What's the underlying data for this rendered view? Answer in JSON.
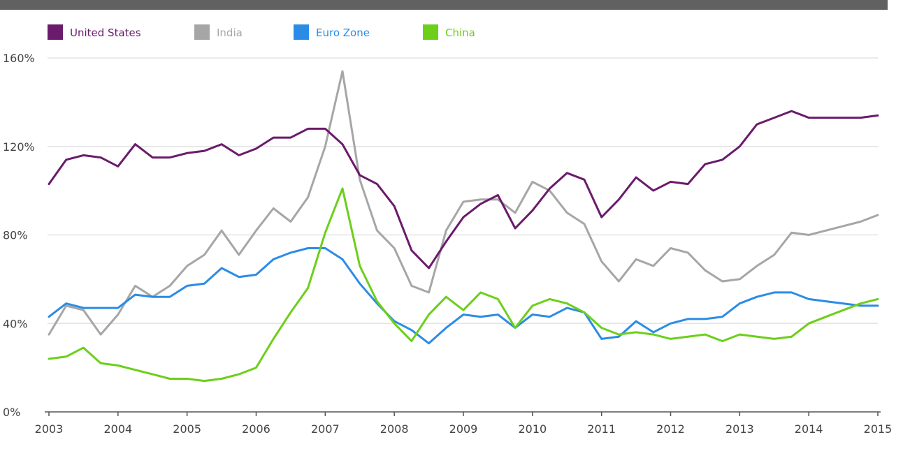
{
  "chart_data": {
    "type": "line",
    "title": "",
    "xlabel": "",
    "ylabel": "",
    "ylim": [
      0,
      160
    ],
    "xlim": [
      2003,
      2015
    ],
    "grid": true,
    "legend_position": "top-left",
    "y_ticks": [
      {
        "value": 0,
        "label": "0%"
      },
      {
        "value": 40,
        "label": "40%"
      },
      {
        "value": 80,
        "label": "80%"
      },
      {
        "value": 120,
        "label": "120%"
      },
      {
        "value": 160,
        "label": "160%"
      }
    ],
    "x_ticks": [
      {
        "value": 2003,
        "label": "2003"
      },
      {
        "value": 2004,
        "label": "2004"
      },
      {
        "value": 2005,
        "label": "2005"
      },
      {
        "value": 2006,
        "label": "2006"
      },
      {
        "value": 2007,
        "label": "2007"
      },
      {
        "value": 2008,
        "label": "2008"
      },
      {
        "value": 2009,
        "label": "2009"
      },
      {
        "value": 2010,
        "label": "2010"
      },
      {
        "value": 2011,
        "label": "2011"
      },
      {
        "value": 2012,
        "label": "2012"
      },
      {
        "value": 2013,
        "label": "2013"
      },
      {
        "value": 2014,
        "label": "2014"
      },
      {
        "value": 2015,
        "label": "2015"
      }
    ],
    "x": [
      2003.0,
      2003.25,
      2003.5,
      2003.75,
      2004.0,
      2004.25,
      2004.5,
      2004.75,
      2005.0,
      2005.25,
      2005.5,
      2005.75,
      2006.0,
      2006.25,
      2006.5,
      2006.75,
      2007.0,
      2007.25,
      2007.5,
      2007.75,
      2008.0,
      2008.25,
      2008.5,
      2008.75,
      2009.0,
      2009.25,
      2009.5,
      2009.75,
      2010.0,
      2010.25,
      2010.5,
      2010.75,
      2011.0,
      2011.25,
      2011.5,
      2011.75,
      2012.0,
      2012.25,
      2012.5,
      2012.75,
      2013.0,
      2013.25,
      2013.5,
      2013.75,
      2014.0,
      2014.25,
      2014.5,
      2014.75,
      2015.0
    ],
    "series": [
      {
        "name": "United States",
        "color": "#6a1b6b",
        "values": [
          103,
          114,
          116,
          115,
          111,
          121,
          115,
          115,
          117,
          118,
          121,
          116,
          119,
          124,
          124,
          128,
          128,
          121,
          107,
          103,
          93,
          73,
          65,
          77,
          88,
          94,
          98,
          83,
          91,
          101,
          108,
          105,
          88,
          96,
          106,
          100,
          104,
          103,
          112,
          114,
          120,
          130,
          133,
          136,
          133,
          133,
          133,
          133,
          134
        ]
      },
      {
        "name": "India",
        "color": "#a6a6a6",
        "values": [
          35,
          48,
          46,
          35,
          44,
          57,
          52,
          57,
          66,
          71,
          82,
          71,
          82,
          92,
          86,
          97,
          120,
          154,
          105,
          82,
          74,
          57,
          54,
          82,
          95,
          96,
          96,
          90,
          104,
          100,
          90,
          85,
          68,
          59,
          69,
          66,
          74,
          72,
          64,
          59,
          60,
          66,
          71,
          81,
          80,
          82,
          84,
          86,
          89
        ]
      },
      {
        "name": "Euro Zone",
        "color": "#2b8ce6",
        "values": [
          43,
          49,
          47,
          47,
          47,
          53,
          52,
          52,
          57,
          58,
          65,
          61,
          62,
          69,
          72,
          74,
          74,
          69,
          58,
          49,
          41,
          37,
          31,
          38,
          44,
          43,
          44,
          38,
          44,
          43,
          47,
          45,
          33,
          34,
          41,
          36,
          40,
          42,
          42,
          43,
          49,
          52,
          54,
          54,
          51,
          50,
          49,
          48,
          48
        ]
      },
      {
        "name": "China",
        "color": "#6ccf1a",
        "values": [
          24,
          25,
          29,
          22,
          21,
          19,
          17,
          15,
          15,
          14,
          15,
          17,
          20,
          33,
          45,
          56,
          81,
          101,
          66,
          50,
          40,
          32,
          44,
          52,
          46,
          54,
          51,
          38,
          48,
          51,
          49,
          45,
          38,
          35,
          36,
          35,
          33,
          34,
          35,
          32,
          35,
          34,
          33,
          34,
          40,
          43,
          46,
          49,
          51
        ]
      }
    ]
  }
}
